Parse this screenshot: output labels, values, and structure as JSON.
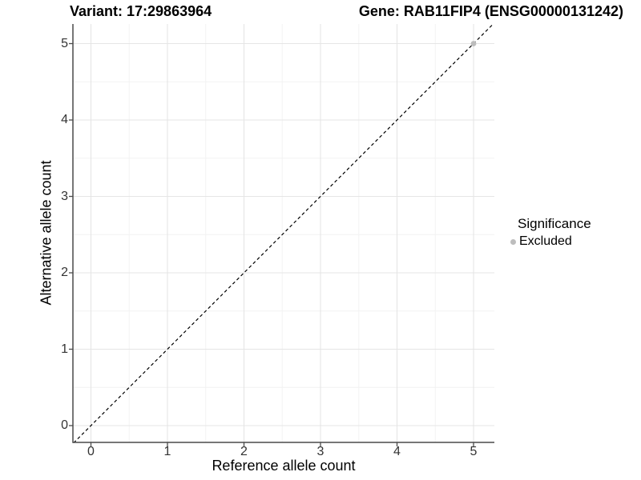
{
  "header": {
    "left_title": "Variant: 17:29863964",
    "right_title": "Gene: RAB11FIP4 (ENSG00000131242)"
  },
  "legend": {
    "title": "Significance",
    "items": [
      {
        "label": "Excluded",
        "color": "#bdbdbd"
      }
    ]
  },
  "chart_data": {
    "type": "scatter",
    "xlabel": "Reference allele count",
    "ylabel": "Alternative allele count",
    "x_ticks": [
      0,
      1,
      2,
      3,
      4,
      5
    ],
    "y_ticks": [
      0,
      1,
      2,
      3,
      4,
      5
    ],
    "x_minor_gridlines": [
      0.5,
      1.5,
      2.5,
      3.5,
      4.5
    ],
    "y_minor_gridlines": [
      0.5,
      1.5,
      2.5,
      3.5,
      4.5
    ],
    "xlim": [
      -0.25,
      5.27
    ],
    "ylim": [
      -0.25,
      5.27
    ],
    "grid": "major-and-minor",
    "legend_position": "right",
    "series": [
      {
        "name": "Excluded",
        "color": "#bdbdbd",
        "points": [
          {
            "x": 5,
            "y": 5
          }
        ]
      }
    ],
    "reference_line": {
      "kind": "identity y=x",
      "style": "dashed",
      "color": "#000000"
    }
  },
  "colors": {
    "grid_major": "#e5e5e5",
    "grid_minor": "#f2f2f2",
    "axis_line": "#4a4a4a",
    "tick_label": "#333333",
    "point_gray": "#bdbdbd",
    "background": "#ffffff"
  }
}
